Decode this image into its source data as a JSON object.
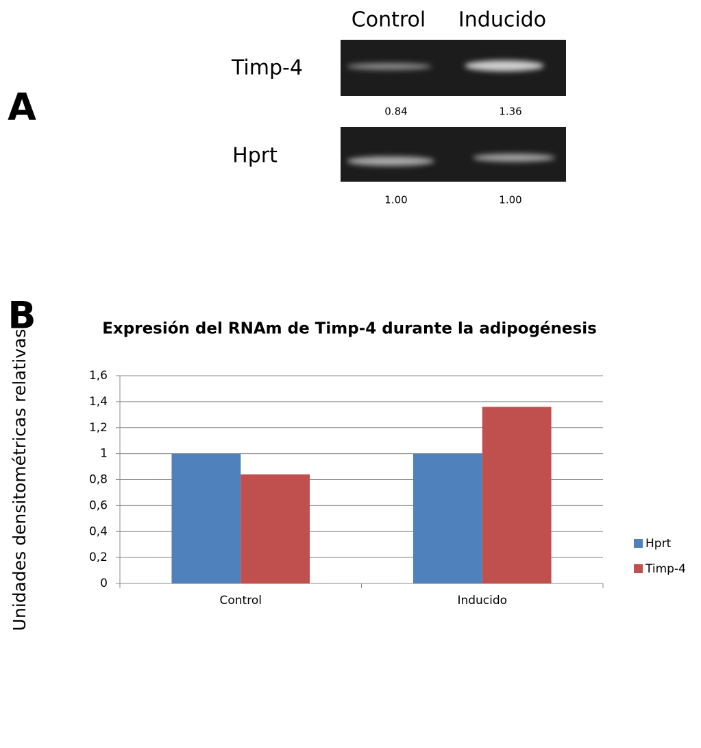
{
  "panels": [
    "A",
    "B"
  ],
  "gel": {
    "column_labels": [
      "Control",
      "Inducido"
    ],
    "rows": [
      {
        "label": "Timp-4",
        "values": [
          "0.84",
          "1.36"
        ]
      },
      {
        "label": "Hprt",
        "values": [
          "1.00",
          "1.00"
        ]
      }
    ]
  },
  "chart_data": {
    "type": "bar",
    "title": "Expresión del RNAm de Timp-4 durante la adipogénesis",
    "ylabel": "Unidades densitométricas relativas",
    "categories": [
      "Control",
      "Inducido"
    ],
    "series": [
      {
        "name": "Hprt",
        "color": "#4f81bd",
        "values": [
          1,
          1
        ]
      },
      {
        "name": "Timp-4",
        "color": "#c0504d",
        "values": [
          0.84,
          1.36
        ]
      }
    ],
    "ylim": [
      0,
      1.6
    ],
    "yticks": [
      0,
      {
        "value": 0.2,
        "label": "0,2"
      },
      {
        "value": 0.4,
        "label": "0,4"
      },
      {
        "value": 0.6,
        "label": "0,6"
      },
      {
        "value": 0.8,
        "label": "0,8"
      },
      1,
      {
        "value": 1.2,
        "label": "1,2"
      },
      {
        "value": 1.4,
        "label": "1,4"
      },
      {
        "value": 1.6,
        "label": "1,6"
      }
    ],
    "grid": true,
    "legend": "right"
  }
}
